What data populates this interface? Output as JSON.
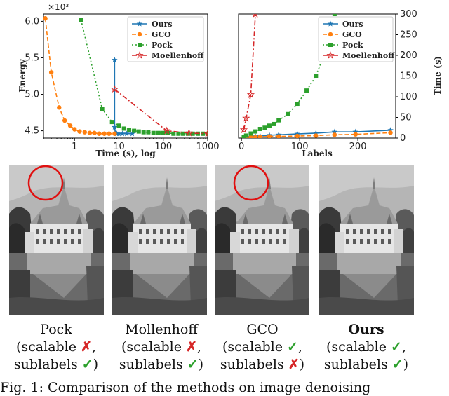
{
  "chart_data": [
    {
      "type": "line",
      "xscale": "log",
      "xlabel": "Time (s), log",
      "ylabel": "Energy",
      "y_multiplier_label": "×10³",
      "xlim": [
        0.2,
        1000
      ],
      "ylim": [
        4.4,
        6.1
      ],
      "x_tick_values": [
        1,
        10,
        100,
        1000
      ],
      "x_tick_labels": [
        "1",
        "10",
        "100",
        "1000"
      ],
      "y_tick_values": [
        4.5,
        5.0,
        5.5,
        6.0
      ],
      "y_tick_labels": [
        "4.5",
        "5.0",
        "5.5",
        "6.0"
      ],
      "legend_position": "top-right",
      "series": [
        {
          "name": "Ours",
          "color": "#1f77b4",
          "marker": "star",
          "dash": "solid",
          "x": [
            8,
            8,
            8.3,
            9,
            10,
            12,
            15,
            20
          ],
          "y": [
            5.47,
            4.55,
            4.47,
            4.46,
            4.46,
            4.46,
            4.46,
            4.46
          ]
        },
        {
          "name": "GCO",
          "color": "#ff7f0e",
          "marker": "circle",
          "dash": "dashed",
          "x": [
            0.22,
            0.3,
            0.45,
            0.6,
            0.8,
            1.0,
            1.3,
            1.7,
            2.2,
            2.8,
            3.6,
            4.7,
            6.0,
            8.0
          ],
          "y": [
            6.04,
            5.3,
            4.82,
            4.64,
            4.57,
            4.52,
            4.49,
            4.48,
            4.47,
            4.47,
            4.46,
            4.46,
            4.46,
            4.46
          ]
        },
        {
          "name": "Pock",
          "color": "#2ca02c",
          "marker": "square",
          "dash": "dotted",
          "x": [
            1.4,
            4.2,
            7.0,
            10,
            13,
            17,
            22,
            28,
            36,
            46,
            60,
            78,
            100,
            130,
            170,
            220,
            280,
            360,
            460,
            600,
            780,
            1000
          ],
          "y": [
            6.02,
            4.8,
            4.62,
            4.57,
            4.53,
            4.51,
            4.5,
            4.49,
            4.48,
            4.48,
            4.47,
            4.47,
            4.47,
            4.47,
            4.46,
            4.46,
            4.46,
            4.46,
            4.46,
            4.46,
            4.46,
            4.46
          ]
        },
        {
          "name": "Moellenhoff",
          "color": "#d62728",
          "marker": "star-outline",
          "dash": "dashdot",
          "x": [
            8,
            120,
            380,
            1000
          ],
          "y": [
            5.07,
            4.5,
            4.47,
            4.46
          ]
        }
      ]
    },
    {
      "type": "line",
      "xlabel": "Labels",
      "ylabel": "Time (s)",
      "xlim": [
        -5,
        265
      ],
      "ylim": [
        0,
        300
      ],
      "x_tick_values": [
        0,
        100,
        200
      ],
      "x_tick_labels": [
        "0",
        "100",
        "200"
      ],
      "y_tick_values": [
        0,
        50,
        100,
        150,
        200,
        250,
        300
      ],
      "y_tick_labels": [
        "0",
        "50",
        "100",
        "150",
        "200",
        "250",
        "300"
      ],
      "legend_position": "top-right",
      "series": [
        {
          "name": "Ours",
          "color": "#1f77b4",
          "marker": "star",
          "dash": "solid",
          "x": [
            4,
            8,
            16,
            24,
            32,
            48,
            64,
            96,
            128,
            160,
            196,
            256
          ],
          "y": [
            1,
            2,
            3,
            4,
            5,
            7,
            8,
            10,
            12,
            15,
            15,
            19
          ]
        },
        {
          "name": "GCO",
          "color": "#ff7f0e",
          "marker": "circle",
          "dash": "dashed",
          "x": [
            4,
            8,
            16,
            24,
            32,
            48,
            64,
            96,
            128,
            160,
            196,
            256
          ],
          "y": [
            1,
            1,
            2,
            2,
            3,
            4,
            4,
            5,
            6,
            8,
            9,
            13
          ]
        },
        {
          "name": "Pock",
          "color": "#2ca02c",
          "marker": "square",
          "dash": "dotted",
          "x": [
            4,
            8,
            16,
            24,
            32,
            40,
            48,
            56,
            64,
            80,
            96,
            112,
            128,
            144,
            160
          ],
          "y": [
            3,
            6,
            11,
            16,
            22,
            25,
            30,
            34,
            43,
            58,
            83,
            115,
            150,
            210,
            300
          ]
        },
        {
          "name": "Moellenhoff",
          "color": "#d62728",
          "marker": "star-outline",
          "dash": "dashdot",
          "x": [
            4,
            8,
            16,
            24
          ],
          "y": [
            20,
            48,
            105,
            300
          ]
        }
      ]
    }
  ],
  "images": [
    {
      "label": "Pock",
      "scalable": "✗",
      "sublabels": "✓",
      "highlight": true
    },
    {
      "label": "Mollenhoff",
      "scalable": "✗",
      "sublabels": "✓",
      "highlight": false
    },
    {
      "label": "GCO",
      "scalable": "✓",
      "sublabels": "✗",
      "highlight": true
    },
    {
      "label": "Ours",
      "scalable": "✓",
      "sublabels": "✓",
      "highlight": false
    }
  ],
  "captions": {
    "scalable_prefix": "(scalable ",
    "scalable_suffix": ",",
    "sublabels_prefix": "sublabels ",
    "sublabels_suffix": ")"
  },
  "figure_caption": "Fig. 1: Comparison of the methods on image denoising"
}
